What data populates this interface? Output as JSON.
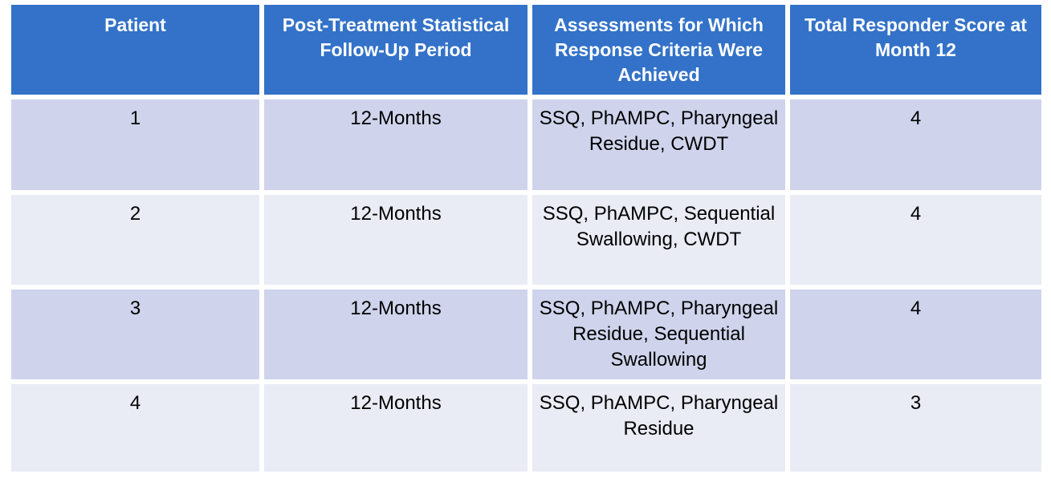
{
  "theme": {
    "header_bg": "#3372C8",
    "header_text": "#FFFFFF",
    "row_odd_bg": "#CFD4EC",
    "row_even_bg": "#E9EBF5",
    "body_text": "#000000",
    "border_color": "#FFFFFF"
  },
  "table": {
    "columns": [
      {
        "label": "Patient"
      },
      {
        "label": "Post-Treatment Statistical\nFollow-Up Period"
      },
      {
        "label": "Assessments for Which\nResponse Criteria Were\nAchieved"
      },
      {
        "label": "Total Responder Score at\nMonth 12"
      }
    ],
    "rows": [
      {
        "patient": "1",
        "follow_up_period": "12-Months",
        "assessments": "SSQ, PhAMPC, Pharyngeal\nResidue, CWDT",
        "total_score": "4"
      },
      {
        "patient": "2",
        "follow_up_period": "12-Months",
        "assessments": "SSQ, PhAMPC, Sequential\nSwallowing, CWDT",
        "total_score": "4"
      },
      {
        "patient": "3",
        "follow_up_period": "12-Months",
        "assessments": "SSQ, PhAMPC, Pharyngeal\nResidue, Sequential\nSwallowing",
        "total_score": "4"
      },
      {
        "patient": "4",
        "follow_up_period": "12-Months",
        "assessments": "SSQ, PhAMPC, Pharyngeal\nResidue",
        "total_score": "3"
      }
    ]
  }
}
